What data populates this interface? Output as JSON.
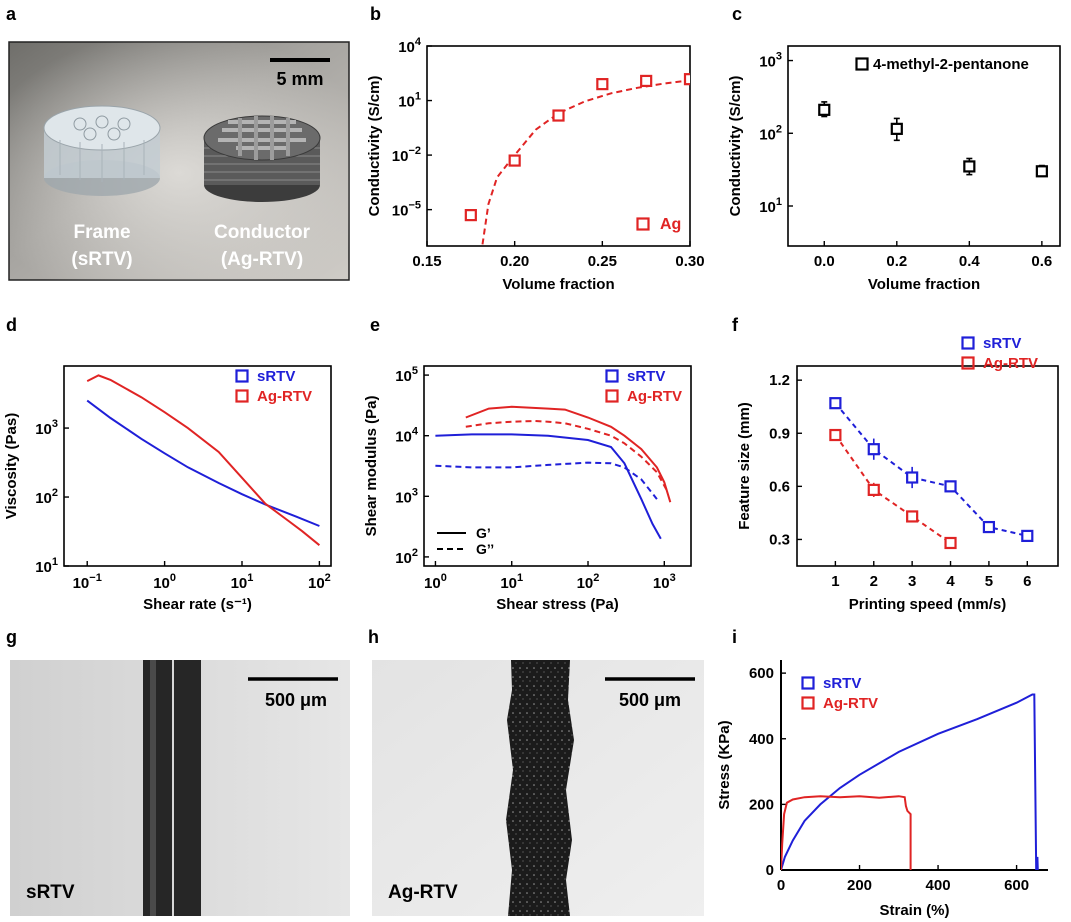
{
  "colors": {
    "blue": "#1f1fd8",
    "red": "#e02424",
    "black": "#000000"
  },
  "panels": {
    "a": {
      "letter": "a",
      "scale_label": "5 mm",
      "frame_label": "Frame",
      "frame_material": "(sRTV)",
      "conductor_label": "Conductor",
      "conductor_material": "(Ag-RTV)"
    },
    "g": {
      "letter": "g",
      "scale_label": "500 μm",
      "sample_label": "sRTV"
    },
    "h": {
      "letter": "h",
      "scale_label": "500 μm",
      "sample_label": "Ag-RTV"
    }
  },
  "chart_data": [
    {
      "id": "b",
      "letter": "b",
      "type": "scatter",
      "xlabel": "Volume fraction",
      "ylabel": "Conductivity (S/cm)",
      "yscale": "log",
      "xlim": [
        0.15,
        0.3
      ],
      "ylim_exp": [
        -7,
        4
      ],
      "xticks": [
        0.15,
        0.2,
        0.25,
        0.3
      ],
      "xtick_labels": [
        "0.15",
        "0.20",
        "0.25",
        "0.30"
      ],
      "yticks_exp": [
        -5,
        -2,
        1,
        4
      ],
      "series": [
        {
          "name": "Ag",
          "color": "#e02424",
          "x": [
            0.175,
            0.2,
            0.225,
            0.25,
            0.275,
            0.3
          ],
          "y": [
            5e-06,
            0.005,
            1.5,
            80,
            120,
            150
          ],
          "fit": {
            "style": "dashed",
            "x": [
              0.18,
              0.185,
              0.19,
              0.2,
              0.212,
              0.225,
              0.24,
              0.255,
              0.27,
              0.285,
              0.3
            ],
            "y": [
              1e-08,
              2e-05,
              0.0006,
              0.01,
              0.25,
              2,
              9,
              25,
              50,
              85,
              130
            ]
          }
        }
      ],
      "legend": [
        {
          "label": "Ag",
          "color": "#e02424"
        }
      ]
    },
    {
      "id": "c",
      "letter": "c",
      "type": "scatter",
      "xlabel": "Volume fraction",
      "ylabel": "Conductivity (S/cm)",
      "yscale": "log",
      "xlim": [
        -0.1,
        0.65
      ],
      "ylim_exp": [
        0.45,
        3.2
      ],
      "xticks": [
        0.0,
        0.2,
        0.4,
        0.6
      ],
      "xtick_labels": [
        "0.0",
        "0.2",
        "0.4",
        "0.6"
      ],
      "yticks_exp": [
        1,
        2,
        3
      ],
      "series": [
        {
          "name": "4-methyl-2-pentanone",
          "color": "#000000",
          "x": [
            0.0,
            0.2,
            0.4,
            0.6
          ],
          "y": [
            210,
            115,
            35,
            30
          ],
          "err_lo": [
            170,
            80,
            27,
            26
          ],
          "err_hi": [
            270,
            160,
            45,
            36
          ]
        }
      ],
      "legend": [
        {
          "label": "4-methyl-2-pentanone",
          "color": "#000000"
        }
      ]
    },
    {
      "id": "d",
      "letter": "d",
      "type": "line",
      "xlabel": "Shear rate (s⁻¹)",
      "ylabel": "Viscosity (Pas)",
      "xscale": "log",
      "yscale": "log",
      "xlim_exp": [
        -1.3,
        2.15
      ],
      "ylim_exp": [
        1,
        3.9
      ],
      "xticks_exp": [
        -1,
        0,
        1,
        2
      ],
      "yticks_exp": [
        1,
        2,
        3
      ],
      "series": [
        {
          "name": "sRTV",
          "color": "#1f1fd8",
          "style": "solid",
          "x": [
            0.1,
            0.2,
            0.5,
            1,
            2,
            5,
            10,
            20,
            50,
            100
          ],
          "y": [
            2500,
            1400,
            700,
            430,
            270,
            160,
            110,
            78,
            52,
            38
          ]
        },
        {
          "name": "Ag-RTV",
          "color": "#e02424",
          "style": "solid",
          "x": [
            0.1,
            0.14,
            0.2,
            0.5,
            1,
            2,
            5,
            10,
            20,
            40,
            60,
            100
          ],
          "y": [
            4800,
            5800,
            5000,
            2800,
            1700,
            1000,
            450,
            190,
            80,
            45,
            32,
            20
          ]
        }
      ],
      "legend": [
        {
          "label": "sRTV",
          "color": "#1f1fd8"
        },
        {
          "label": "Ag-RTV",
          "color": "#e02424"
        }
      ]
    },
    {
      "id": "e",
      "letter": "e",
      "type": "line",
      "xlabel": "Shear stress (Pa)",
      "ylabel": "Shear modulus (Pa)",
      "xscale": "log",
      "yscale": "log",
      "xlim_exp": [
        -0.15,
        3.35
      ],
      "ylim_exp": [
        1.85,
        5.15
      ],
      "xticks_exp": [
        0,
        1,
        2,
        3
      ],
      "yticks_exp": [
        2,
        3,
        4,
        5
      ],
      "series": [
        {
          "name": "sRTV G'",
          "color": "#1f1fd8",
          "style": "solid",
          "x": [
            1,
            3,
            10,
            30,
            100,
            200,
            300,
            500,
            700,
            900
          ],
          "y": [
            10000,
            10500,
            10500,
            10000,
            8500,
            6500,
            3500,
            900,
            350,
            200
          ]
        },
        {
          "name": "sRTV G''",
          "color": "#1f1fd8",
          "style": "dashed",
          "x": [
            1,
            3,
            10,
            30,
            100,
            200,
            300,
            500,
            800
          ],
          "y": [
            3200,
            3000,
            3000,
            3300,
            3600,
            3500,
            3000,
            1900,
            900
          ]
        },
        {
          "name": "Ag-RTV G'",
          "color": "#e02424",
          "style": "solid",
          "x": [
            2.5,
            5,
            10,
            30,
            50,
            100,
            200,
            300,
            500,
            800,
            1000,
            1200
          ],
          "y": [
            20000,
            28000,
            30000,
            28000,
            27000,
            20000,
            14000,
            10000,
            6000,
            3000,
            1700,
            800
          ]
        },
        {
          "name": "Ag-RTV G''",
          "color": "#e02424",
          "style": "dashed",
          "x": [
            2.5,
            5,
            10,
            20,
            30,
            50,
            100,
            200,
            300,
            500,
            800,
            1100
          ],
          "y": [
            14000,
            16000,
            17000,
            17500,
            17000,
            16000,
            13000,
            10000,
            7500,
            4500,
            2500,
            1200
          ]
        }
      ],
      "legend": [
        {
          "label": "sRTV",
          "color": "#1f1fd8"
        },
        {
          "label": "Ag-RTV",
          "color": "#e02424"
        }
      ],
      "style_legend": [
        {
          "label": "G’",
          "style": "solid"
        },
        {
          "label": "G’’",
          "style": "dashed"
        }
      ]
    },
    {
      "id": "f",
      "letter": "f",
      "type": "scatter",
      "xlabel": "Printing speed (mm/s)",
      "ylabel": "Feature size (mm)",
      "xlim": [
        0,
        6.8
      ],
      "ylim": [
        0.15,
        1.28
      ],
      "xticks": [
        1,
        2,
        3,
        4,
        5,
        6
      ],
      "yticks": [
        0.3,
        0.6,
        0.9,
        1.2
      ],
      "ytick_labels": [
        "0.3",
        "0.6",
        "0.9",
        "1.2"
      ],
      "series": [
        {
          "name": "sRTV",
          "color": "#1f1fd8",
          "x": [
            1,
            2,
            3,
            4,
            5,
            6
          ],
          "y": [
            1.07,
            0.81,
            0.65,
            0.6,
            0.37,
            0.32
          ],
          "err": [
            0.02,
            0.06,
            0.06,
            0.03,
            0.02,
            0.02
          ]
        },
        {
          "name": "Ag-RTV",
          "color": "#e02424",
          "x": [
            1,
            2,
            3,
            4
          ],
          "y": [
            0.89,
            0.58,
            0.43,
            0.28
          ],
          "err": [
            0.02,
            0.04,
            0.02,
            0.01
          ]
        }
      ],
      "legend": [
        {
          "label": "sRTV",
          "color": "#1f1fd8"
        },
        {
          "label": "Ag-RTV",
          "color": "#e02424"
        }
      ]
    },
    {
      "id": "i",
      "letter": "i",
      "type": "line",
      "xlabel": "Strain (%)",
      "ylabel": "Stress (KPa)",
      "xlim": [
        0,
        680
      ],
      "ylim": [
        0,
        640
      ],
      "xticks": [
        0,
        200,
        400,
        600
      ],
      "yticks": [
        0,
        200,
        400,
        600
      ],
      "series": [
        {
          "name": "sRTV",
          "color": "#1f1fd8",
          "style": "solid",
          "x": [
            0,
            10,
            30,
            60,
            100,
            150,
            200,
            300,
            400,
            500,
            600,
            640,
            645,
            650,
            652,
            653,
            654
          ],
          "y": [
            0,
            40,
            90,
            150,
            200,
            250,
            290,
            360,
            415,
            460,
            510,
            535,
            535,
            0,
            30,
            40,
            0
          ]
        },
        {
          "name": "Ag-RTV",
          "color": "#e02424",
          "style": "solid",
          "x": [
            0,
            3,
            8,
            15,
            30,
            60,
            100,
            150,
            200,
            250,
            300,
            315,
            318,
            322,
            330,
            330
          ],
          "y": [
            0,
            80,
            170,
            205,
            215,
            222,
            225,
            222,
            225,
            220,
            225,
            222,
            195,
            180,
            170,
            0
          ]
        }
      ],
      "legend": [
        {
          "label": "sRTV",
          "color": "#1f1fd8"
        },
        {
          "label": "Ag-RTV",
          "color": "#e02424"
        }
      ]
    }
  ]
}
